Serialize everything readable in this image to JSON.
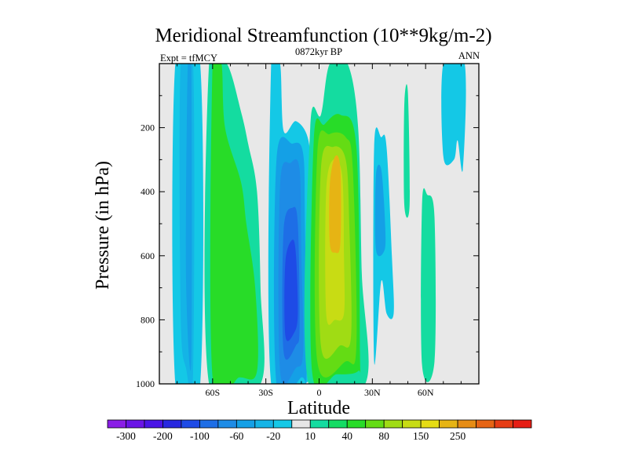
{
  "chart_data": {
    "type": "contour",
    "title": "Meridional Streamfunction (10**9kg/m-2)",
    "left_label": "Expt = tfMCY",
    "center_label": "0872kyr BP",
    "right_label": "ANN",
    "xlabel": "Latitude",
    "ylabel": "Pressure (in hPa)",
    "xlim": [
      -90,
      90
    ],
    "ylim": [
      0,
      1000
    ],
    "y_inverted": true,
    "xticks": [
      {
        "value": -60,
        "label": "60S"
      },
      {
        "value": -30,
        "label": "30S"
      },
      {
        "value": 0,
        "label": "0"
      },
      {
        "value": 30,
        "label": "30N"
      },
      {
        "value": 60,
        "label": "60N"
      }
    ],
    "yticks": [
      {
        "value": 200,
        "label": "200"
      },
      {
        "value": 400,
        "label": "400"
      },
      {
        "value": 600,
        "label": "600"
      },
      {
        "value": 800,
        "label": "800"
      },
      {
        "value": 1000,
        "label": "1000"
      }
    ],
    "missing_color": "#e8e8e8",
    "colorbar": {
      "colors": [
        "#8a1ee6",
        "#6a14e6",
        "#4a14e6",
        "#2828e0",
        "#1e4be6",
        "#1e6ee6",
        "#1e8ce6",
        "#14a0e6",
        "#14b4e6",
        "#14c8e6",
        "#e6e6e6",
        "#14dca0",
        "#14dc64",
        "#28dc28",
        "#64dc14",
        "#a0dc14",
        "#c8dc14",
        "#e6dc14",
        "#e6b414",
        "#e68c14",
        "#e66414",
        "#e63c14",
        "#e61e14"
      ],
      "labels": [
        {
          "after_box": 1,
          "text": "-300"
        },
        {
          "after_box": 3,
          "text": "-200"
        },
        {
          "after_box": 5,
          "text": "-100"
        },
        {
          "after_box": 7,
          "text": "-60"
        },
        {
          "after_box": 9,
          "text": "-20"
        },
        {
          "after_box": 11,
          "text": "10"
        },
        {
          "after_box": 13,
          "text": "40"
        },
        {
          "after_box": 15,
          "text": "80"
        },
        {
          "after_box": 17,
          "text": "150"
        },
        {
          "after_box": 19,
          "text": "250"
        }
      ]
    },
    "regions": [
      {
        "name": "sh-polar-cell-negative",
        "level": -20,
        "color": "#14c8e6",
        "poly": [
          [
            -81,
            1000
          ],
          [
            -81,
            0
          ],
          [
            -67,
            0
          ],
          [
            -67,
            1000
          ]
        ]
      },
      {
        "name": "sh-polar-cell-inner",
        "level": -30,
        "color": "#14b4e6",
        "poly": [
          [
            -78,
            780
          ],
          [
            -78,
            0
          ],
          [
            -71,
            0
          ],
          [
            -71,
            960
          ],
          [
            -75,
            950
          ]
        ]
      },
      {
        "name": "sh-polar-cell-core",
        "level": -40,
        "color": "#14a0e6",
        "poly": [
          [
            -75,
            660
          ],
          [
            -74,
            0
          ],
          [
            -72,
            0
          ],
          [
            -72,
            930
          ]
        ]
      },
      {
        "name": "sh-ferrel-cell-positive",
        "level": 10,
        "color": "#14dca0",
        "poly": [
          [
            -62,
            1000
          ],
          [
            -62,
            0
          ],
          [
            -52,
            0
          ],
          [
            -44,
            150
          ],
          [
            -40,
            250
          ],
          [
            -35,
            400
          ],
          [
            -33,
            700
          ],
          [
            -33,
            1000
          ]
        ]
      },
      {
        "name": "sh-ferrel-cell-inner",
        "level": 30,
        "color": "#28dc28",
        "poly": [
          [
            -60,
            980
          ],
          [
            -60,
            0
          ],
          [
            -55,
            0
          ],
          [
            -53,
            200
          ],
          [
            -44,
            370
          ],
          [
            -41,
            500
          ],
          [
            -36,
            700
          ],
          [
            -35,
            960
          ],
          [
            -45,
            980
          ]
        ]
      },
      {
        "name": "sh-hadley-cell-negative",
        "level": -20,
        "color": "#14c8e6",
        "poly": [
          [
            -27,
            1000
          ],
          [
            -27,
            0
          ],
          [
            -22,
            0
          ],
          [
            -20,
            210
          ],
          [
            -13,
            180
          ],
          [
            -6,
            240
          ],
          [
            -5,
            400
          ],
          [
            -4,
            900
          ],
          [
            -8,
            1000
          ]
        ]
      },
      {
        "name": "sh-hadley-cell-inner",
        "level": -40,
        "color": "#14a0e6",
        "poly": [
          [
            -24,
            1000
          ],
          [
            -24,
            300
          ],
          [
            -15,
            250
          ],
          [
            -9,
            280
          ],
          [
            -8,
            500
          ],
          [
            -7,
            960
          ],
          [
            -10,
            980
          ]
        ]
      },
      {
        "name": "sh-hadley-cell-mid",
        "level": -60,
        "color": "#1e8ce6",
        "poly": [
          [
            -22,
            960
          ],
          [
            -22,
            380
          ],
          [
            -16,
            310
          ],
          [
            -11,
            330
          ],
          [
            -10,
            600
          ],
          [
            -9,
            900
          ],
          [
            -13,
            950
          ]
        ]
      },
      {
        "name": "sh-hadley-cell-strong",
        "level": -80,
        "color": "#1e6ee6",
        "poly": [
          [
            -20,
            900
          ],
          [
            -20,
            520
          ],
          [
            -15,
            450
          ],
          [
            -12,
            500
          ],
          [
            -11,
            820
          ],
          [
            -13,
            880
          ]
        ]
      },
      {
        "name": "sh-hadley-cell-core",
        "level": -100,
        "color": "#1e4be6",
        "poly": [
          [
            -19,
            850
          ],
          [
            -19,
            620
          ],
          [
            -15,
            550
          ],
          [
            -13,
            600
          ],
          [
            -12,
            780
          ],
          [
            -14,
            840
          ]
        ]
      },
      {
        "name": "nh-hadley-cell-positive",
        "level": 10,
        "color": "#14dca0",
        "poly": [
          [
            -6,
            1000
          ],
          [
            -5,
            200
          ],
          [
            1,
            160
          ],
          [
            6,
            0
          ],
          [
            16,
            0
          ],
          [
            22,
            200
          ],
          [
            24,
            650
          ],
          [
            26,
            1000
          ]
        ]
      },
      {
        "name": "nh-hadley-cell-inner",
        "level": 30,
        "color": "#28dc28",
        "poly": [
          [
            -4,
            960
          ],
          [
            -3,
            240
          ],
          [
            3,
            190
          ],
          [
            12,
            160
          ],
          [
            21,
            260
          ],
          [
            23,
            900
          ],
          [
            22,
            960
          ],
          [
            10,
            970
          ]
        ]
      },
      {
        "name": "nh-hadley-cell-mid",
        "level": 50,
        "color": "#64dc14",
        "poly": [
          [
            -1,
            930
          ],
          [
            -1,
            280
          ],
          [
            6,
            220
          ],
          [
            15,
            230
          ],
          [
            19,
            330
          ],
          [
            21,
            880
          ],
          [
            15,
            930
          ]
        ]
      },
      {
        "name": "nh-hadley-cell-strong",
        "level": 70,
        "color": "#a0dc14",
        "poly": [
          [
            1,
            880
          ],
          [
            1,
            330
          ],
          [
            8,
            260
          ],
          [
            15,
            300
          ],
          [
            17,
            500
          ],
          [
            18,
            850
          ],
          [
            12,
            880
          ]
        ]
      },
      {
        "name": "nh-hadley-cell-high",
        "level": 90,
        "color": "#c8dc14",
        "poly": [
          [
            4,
            780
          ],
          [
            4,
            400
          ],
          [
            8,
            300
          ],
          [
            13,
            350
          ],
          [
            14,
            600
          ],
          [
            14,
            780
          ],
          [
            9,
            800
          ]
        ]
      },
      {
        "name": "nh-hadley-cell-core",
        "level": 120,
        "color": "#e6b414",
        "poly": [
          [
            6,
            560
          ],
          [
            6,
            380
          ],
          [
            9,
            290
          ],
          [
            12,
            330
          ],
          [
            12,
            560
          ],
          [
            9,
            590
          ]
        ]
      },
      {
        "name": "nh-ferrel-cell-negative",
        "level": -20,
        "color": "#14c8e6",
        "poly": [
          [
            31,
            930
          ],
          [
            31,
            260
          ],
          [
            35,
            230
          ],
          [
            38,
            260
          ],
          [
            41,
            600
          ],
          [
            42,
            780
          ],
          [
            38,
            780
          ],
          [
            35,
            680
          ]
        ]
      },
      {
        "name": "nh-ferrel-cell-inner",
        "level": -40,
        "color": "#14a0e6",
        "poly": [
          [
            32,
            580
          ],
          [
            32,
            350
          ],
          [
            35,
            330
          ],
          [
            37,
            480
          ],
          [
            37,
            580
          ]
        ]
      },
      {
        "name": "nh-subpolar-positive-upper",
        "level": 10,
        "color": "#14dca0",
        "poly": [
          [
            48,
            440
          ],
          [
            48,
            130
          ],
          [
            50,
            90
          ],
          [
            51,
            440
          ]
        ]
      },
      {
        "name": "nh-subpolar-positive-lower",
        "level": 10,
        "color": "#14dca0",
        "poly": [
          [
            58,
            940
          ],
          [
            58,
            440
          ],
          [
            61,
            410
          ],
          [
            65,
            480
          ],
          [
            65,
            930
          ]
        ]
      },
      {
        "name": "nh-polar-cell-negative",
        "level": -20,
        "color": "#14c8e6",
        "poly": [
          [
            70,
            290
          ],
          [
            70,
            0
          ],
          [
            82,
            0
          ],
          [
            81,
            330
          ],
          [
            78,
            240
          ],
          [
            76,
            300
          ]
        ]
      }
    ]
  }
}
